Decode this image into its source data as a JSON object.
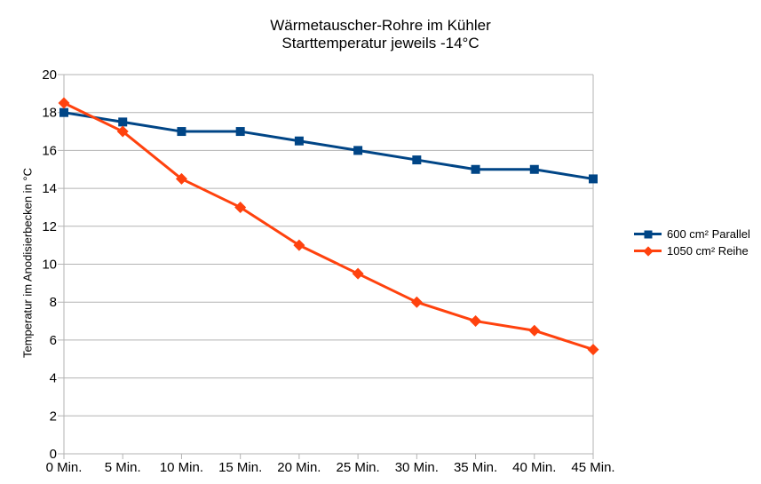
{
  "title": {
    "line1": "Wärmetauscher-Rohre im Kühler",
    "line2": "Starttemperatur jeweils -14°C"
  },
  "chart_data": {
    "type": "line",
    "categories": [
      "0 Min.",
      "5 Min.",
      "10 Min.",
      "15 Min.",
      "20 Min.",
      "25 Min.",
      "30 Min.",
      "35 Min.",
      "40 Min.",
      "45 Min."
    ],
    "series": [
      {
        "name": "600 cm² Parallel",
        "marker": "square",
        "color": "#004586",
        "values": [
          18,
          17.5,
          17,
          17,
          16.5,
          16,
          15.5,
          15,
          15,
          14.5
        ]
      },
      {
        "name": "1050 cm² Reihe",
        "marker": "diamond",
        "color": "#FF420E",
        "values": [
          18.5,
          17,
          14.5,
          13,
          11,
          9.5,
          8,
          7,
          6.5,
          5.5
        ]
      }
    ],
    "xlabel": "",
    "ylabel": "Temperatur im Anodisierbecken in °C",
    "ylim": [
      0,
      20
    ],
    "ytick_step": 2,
    "grid": "horizontal-only",
    "legend_position": "right",
    "colors": {
      "grid": "#b3b3b3",
      "axis": "#b3b3b3",
      "text": "#000000",
      "background": "#ffffff"
    }
  }
}
